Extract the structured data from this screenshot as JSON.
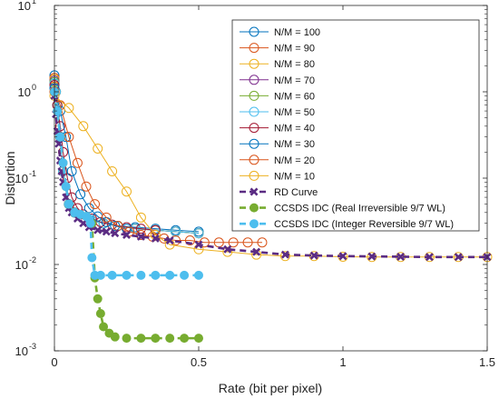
{
  "chart_data": {
    "type": "line",
    "xlabel": "Rate (bit per pixel)",
    "ylabel": "Distortion",
    "xlim": [
      0,
      1.5
    ],
    "ylim": [
      0.001,
      10
    ],
    "yscale": "log",
    "grid": false,
    "legend_position": "top-right",
    "x_ticks": [
      {
        "value": 0,
        "label": "0"
      },
      {
        "value": 0.5,
        "label": "0.5"
      },
      {
        "value": 1,
        "label": "1"
      },
      {
        "value": 1.5,
        "label": "1.5"
      }
    ],
    "y_ticks": [
      {
        "value": 0.001,
        "base": "10",
        "exp": "-3"
      },
      {
        "value": 0.01,
        "base": "10",
        "exp": "-2"
      },
      {
        "value": 0.1,
        "base": "10",
        "exp": "-1"
      },
      {
        "value": 1,
        "base": "10",
        "exp": "0"
      },
      {
        "value": 10,
        "base": "10",
        "exp": "1"
      }
    ],
    "series": [
      {
        "name": "N/M = 100",
        "color": "#0072BD",
        "marker": "open-circle",
        "style": "solid",
        "x": [
          0,
          0.005,
          0.01,
          0.02,
          0.03,
          0.05,
          0.07,
          0.1,
          0.13,
          0.17,
          0.22,
          0.28,
          0.35,
          0.42,
          0.5
        ],
        "y": [
          1.55,
          1.0,
          0.7,
          0.3,
          0.12,
          0.05,
          0.04,
          0.035,
          0.032,
          0.03,
          0.028,
          0.027,
          0.026,
          0.025,
          0.024
        ]
      },
      {
        "name": "N/M = 90",
        "color": "#D95319",
        "marker": "open-circle",
        "style": "solid",
        "x": [
          0,
          0.005,
          0.01,
          0.02,
          0.03,
          0.05,
          0.07,
          0.1,
          0.13,
          0.17,
          0.22,
          0.28,
          0.35,
          0.42,
          0.5
        ],
        "y": [
          1.45,
          1.0,
          0.7,
          0.3,
          0.12,
          0.05,
          0.04,
          0.035,
          0.032,
          0.03,
          0.028,
          0.026,
          0.025,
          0.024,
          0.023
        ]
      },
      {
        "name": "N/M = 80",
        "color": "#EDB120",
        "marker": "open-circle",
        "style": "solid",
        "x": [
          0,
          0.005,
          0.01,
          0.02,
          0.03,
          0.05,
          0.07,
          0.1,
          0.13,
          0.17,
          0.22,
          0.28,
          0.35,
          0.42,
          0.5
        ],
        "y": [
          1.4,
          1.0,
          0.7,
          0.3,
          0.12,
          0.05,
          0.04,
          0.035,
          0.032,
          0.03,
          0.028,
          0.026,
          0.025,
          0.024,
          0.023
        ]
      },
      {
        "name": "N/M = 70",
        "color": "#7E2F8E",
        "marker": "open-circle",
        "style": "solid",
        "x": [
          0,
          0.005,
          0.01,
          0.02,
          0.03,
          0.05,
          0.07,
          0.1,
          0.13,
          0.17,
          0.22,
          0.28,
          0.35,
          0.42,
          0.5
        ],
        "y": [
          1.35,
          1.0,
          0.7,
          0.3,
          0.12,
          0.05,
          0.04,
          0.035,
          0.032,
          0.03,
          0.028,
          0.026,
          0.025,
          0.024,
          0.023
        ]
      },
      {
        "name": "N/M = 60",
        "color": "#77AC30",
        "marker": "open-circle",
        "style": "solid",
        "x": [
          0,
          0.005,
          0.01,
          0.02,
          0.03,
          0.05,
          0.07,
          0.1,
          0.13,
          0.17,
          0.22,
          0.28,
          0.35,
          0.42,
          0.5
        ],
        "y": [
          1.3,
          1.0,
          0.7,
          0.3,
          0.12,
          0.05,
          0.04,
          0.035,
          0.032,
          0.03,
          0.028,
          0.026,
          0.025,
          0.024,
          0.023
        ]
      },
      {
        "name": "N/M = 50",
        "color": "#4DBEEE",
        "marker": "open-circle",
        "style": "solid",
        "x": [
          0,
          0.005,
          0.01,
          0.02,
          0.03,
          0.05,
          0.07,
          0.1,
          0.13,
          0.17,
          0.22,
          0.28,
          0.35,
          0.42,
          0.5
        ],
        "y": [
          1.25,
          1.0,
          0.7,
          0.3,
          0.12,
          0.05,
          0.04,
          0.035,
          0.032,
          0.03,
          0.028,
          0.026,
          0.025,
          0.024,
          0.023
        ]
      },
      {
        "name": "N/M = 40",
        "color": "#A2142F",
        "marker": "open-circle",
        "style": "solid",
        "x": [
          0,
          0.01,
          0.02,
          0.03,
          0.045,
          0.06,
          0.08,
          0.1,
          0.13,
          0.16,
          0.2,
          0.25,
          0.3,
          0.35
        ],
        "y": [
          1.2,
          0.7,
          0.4,
          0.2,
          0.1,
          0.06,
          0.045,
          0.038,
          0.034,
          0.031,
          0.029,
          0.027,
          0.026,
          0.025
        ]
      },
      {
        "name": "N/M = 30",
        "color": "#0072BD",
        "marker": "open-circle",
        "style": "solid",
        "x": [
          0,
          0.02,
          0.04,
          0.06,
          0.09,
          0.12,
          0.15,
          0.18,
          0.21,
          0.25
        ],
        "y": [
          1.1,
          0.6,
          0.3,
          0.12,
          0.065,
          0.045,
          0.036,
          0.031,
          0.028,
          0.026
        ]
      },
      {
        "name": "N/M = 20",
        "color": "#D95319",
        "marker": "open-circle",
        "style": "solid",
        "x": [
          0,
          0.02,
          0.05,
          0.08,
          0.11,
          0.14,
          0.18,
          0.22,
          0.26,
          0.3,
          0.34,
          0.38,
          0.42,
          0.47,
          0.52,
          0.57,
          0.62,
          0.67,
          0.72
        ],
        "y": [
          1.0,
          0.7,
          0.3,
          0.15,
          0.08,
          0.05,
          0.035,
          0.028,
          0.024,
          0.022,
          0.021,
          0.02,
          0.019,
          0.019,
          0.018,
          0.018,
          0.018,
          0.018,
          0.018
        ]
      },
      {
        "name": "N/M = 10",
        "color": "#EDB120",
        "marker": "open-circle",
        "style": "solid",
        "x": [
          0,
          0.05,
          0.1,
          0.15,
          0.2,
          0.25,
          0.3,
          0.35,
          0.4,
          0.5,
          0.6,
          0.7,
          0.8,
          0.9,
          1.0,
          1.1,
          1.2,
          1.3,
          1.4,
          1.5
        ],
        "y": [
          0.9,
          0.65,
          0.4,
          0.22,
          0.12,
          0.07,
          0.035,
          0.022,
          0.017,
          0.015,
          0.014,
          0.013,
          0.0125,
          0.0125,
          0.0123,
          0.0122,
          0.0122,
          0.0122,
          0.0122,
          0.0122
        ]
      },
      {
        "name": "RD Curve",
        "color": "#5B2C83",
        "marker": "x",
        "style": "dashed",
        "x": [
          0,
          0.005,
          0.01,
          0.015,
          0.02,
          0.025,
          0.03,
          0.04,
          0.05,
          0.06,
          0.08,
          0.1,
          0.12,
          0.15,
          0.18,
          0.21,
          0.25,
          0.3,
          0.35,
          0.4,
          0.5,
          0.6,
          0.7,
          0.8,
          0.9,
          1.0,
          1.1,
          1.2,
          1.3,
          1.4,
          1.5
        ],
        "y": [
          0.9,
          0.55,
          0.35,
          0.25,
          0.16,
          0.12,
          0.09,
          0.06,
          0.045,
          0.04,
          0.034,
          0.03,
          0.027,
          0.025,
          0.024,
          0.023,
          0.022,
          0.021,
          0.02,
          0.019,
          0.017,
          0.015,
          0.014,
          0.013,
          0.0127,
          0.0125,
          0.0124,
          0.0123,
          0.0122,
          0.0122,
          0.0122
        ]
      },
      {
        "name": "CCSDS IDC (Real Irreversible 9/7 WL)",
        "color": "#77AC30",
        "marker": "filled-circle",
        "style": "dashed",
        "x": [
          0,
          0.01,
          0.02,
          0.03,
          0.04,
          0.05,
          0.07,
          0.09,
          0.11,
          0.13,
          0.14,
          0.15,
          0.16,
          0.17,
          0.19,
          0.21,
          0.25,
          0.3,
          0.35,
          0.4,
          0.45,
          0.5
        ],
        "y": [
          1.0,
          0.6,
          0.3,
          0.15,
          0.08,
          0.05,
          0.04,
          0.038,
          0.036,
          0.03,
          0.007,
          0.004,
          0.0027,
          0.0019,
          0.0016,
          0.00145,
          0.0014,
          0.0014,
          0.0014,
          0.0014,
          0.0014,
          0.0014
        ]
      },
      {
        "name": "CCSDS IDC (Integer Reversible 9/7 WL)",
        "color": "#4DBEEE",
        "marker": "filled-circle",
        "style": "dashed",
        "x": [
          0,
          0.01,
          0.02,
          0.03,
          0.04,
          0.05,
          0.07,
          0.09,
          0.11,
          0.12,
          0.125,
          0.13,
          0.14,
          0.16,
          0.2,
          0.25,
          0.3,
          0.35,
          0.4,
          0.45,
          0.5
        ],
        "y": [
          1.0,
          0.6,
          0.3,
          0.15,
          0.08,
          0.05,
          0.04,
          0.038,
          0.036,
          0.034,
          0.03,
          0.012,
          0.0075,
          0.0075,
          0.0075,
          0.0075,
          0.0075,
          0.0075,
          0.0075,
          0.0075,
          0.0075
        ]
      }
    ]
  }
}
